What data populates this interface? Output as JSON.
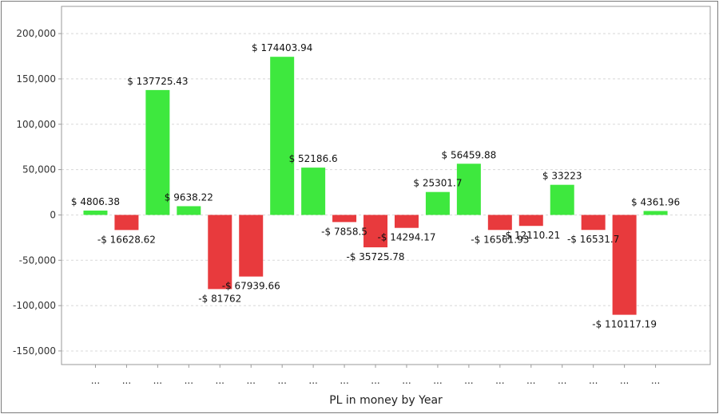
{
  "chart_data": {
    "type": "bar",
    "title": "",
    "xlabel": "PL in money by Year",
    "ylabel": "",
    "ylim": [
      -165000,
      230000
    ],
    "y_ticks": [
      200000,
      150000,
      100000,
      50000,
      0,
      -50000,
      -100000,
      -150000
    ],
    "y_tick_labels": [
      "200,000",
      "150,000",
      "100,000",
      "50,000",
      "0",
      "-50,000",
      "-100,000",
      "-150,000"
    ],
    "grid": true,
    "legend": "none",
    "colors": {
      "positive": "#3ee83e",
      "negative": "#e83a3d"
    },
    "categories": [
      "...",
      "...",
      "...",
      "...",
      "...",
      "...",
      "...",
      "...",
      "...",
      "...",
      "...",
      "...",
      "...",
      "...",
      "...",
      "...",
      "...",
      "...",
      "..."
    ],
    "values": [
      4806.38,
      -16628.62,
      137725.43,
      9638.22,
      -81762,
      -67939.66,
      174403.94,
      52186.6,
      -7858.5,
      -35725.78,
      -14294.17,
      25301.7,
      56459.88,
      -16561.93,
      -12110.21,
      33223,
      -16531.7,
      -110117.19,
      4361.96
    ],
    "data_labels": [
      "$ 4806.38",
      "-$ 16628.62",
      "$ 137725.43",
      "$ 9638.22",
      "-$ 81762",
      "-$ 67939.66",
      "$ 174403.94",
      "$ 52186.6",
      "-$ 7858.5",
      "-$ 35725.78",
      "-$ 14294.17",
      "$ 25301.7",
      "$ 56459.88",
      "-$ 16561.93",
      "-$ 12110.21",
      "$ 33223",
      "-$ 16531.7",
      "-$ 110117.19",
      "$ 4361.96"
    ]
  }
}
